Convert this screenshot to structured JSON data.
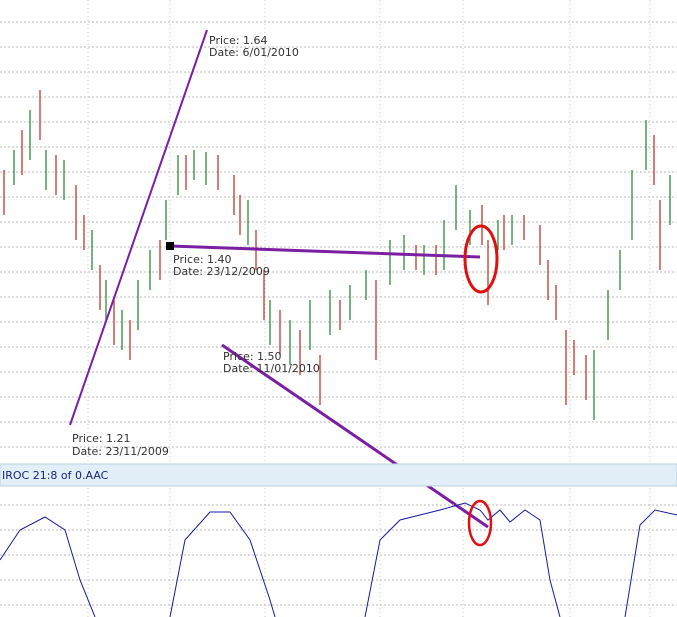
{
  "annotations": [
    {
      "price": "Price: 1.64",
      "date": "Date: 6/01/2010"
    },
    {
      "price": "Price: 1.40",
      "date": "Date: 23/12/2009"
    },
    {
      "price": "Price: 1.50",
      "date": "Date: 11/01/2010"
    },
    {
      "price": "Price: 1.21",
      "date": "Date: 23/11/2009"
    }
  ],
  "indicator": {
    "label": "IROC 21:8  of 0.AAC"
  }
}
